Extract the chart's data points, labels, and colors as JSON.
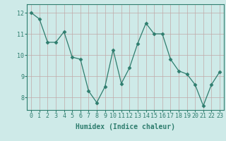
{
  "x": [
    0,
    1,
    2,
    3,
    4,
    5,
    6,
    7,
    8,
    9,
    10,
    11,
    12,
    13,
    14,
    15,
    16,
    17,
    18,
    19,
    20,
    21,
    22,
    23
  ],
  "y": [
    12.0,
    11.7,
    10.6,
    10.6,
    11.1,
    9.9,
    9.8,
    8.3,
    7.75,
    8.5,
    10.25,
    8.65,
    9.4,
    10.55,
    11.5,
    11.0,
    11.0,
    9.8,
    9.25,
    9.1,
    8.6,
    7.6,
    8.6,
    9.2
  ],
  "line_color": "#2e7d6e",
  "marker": "D",
  "marker_size": 2.5,
  "bg_color": "#ceeae8",
  "grid_color": "#c0a8a8",
  "xlabel": "Humidex (Indice chaleur)",
  "xlabel_fontsize": 7,
  "tick_fontsize": 6,
  "yticks": [
    8,
    9,
    10,
    11,
    12
  ],
  "xticks": [
    0,
    1,
    2,
    3,
    4,
    5,
    6,
    7,
    8,
    9,
    10,
    11,
    12,
    13,
    14,
    15,
    16,
    17,
    18,
    19,
    20,
    21,
    22,
    23
  ],
  "ylim": [
    7.4,
    12.4
  ],
  "xlim": [
    -0.5,
    23.5
  ]
}
